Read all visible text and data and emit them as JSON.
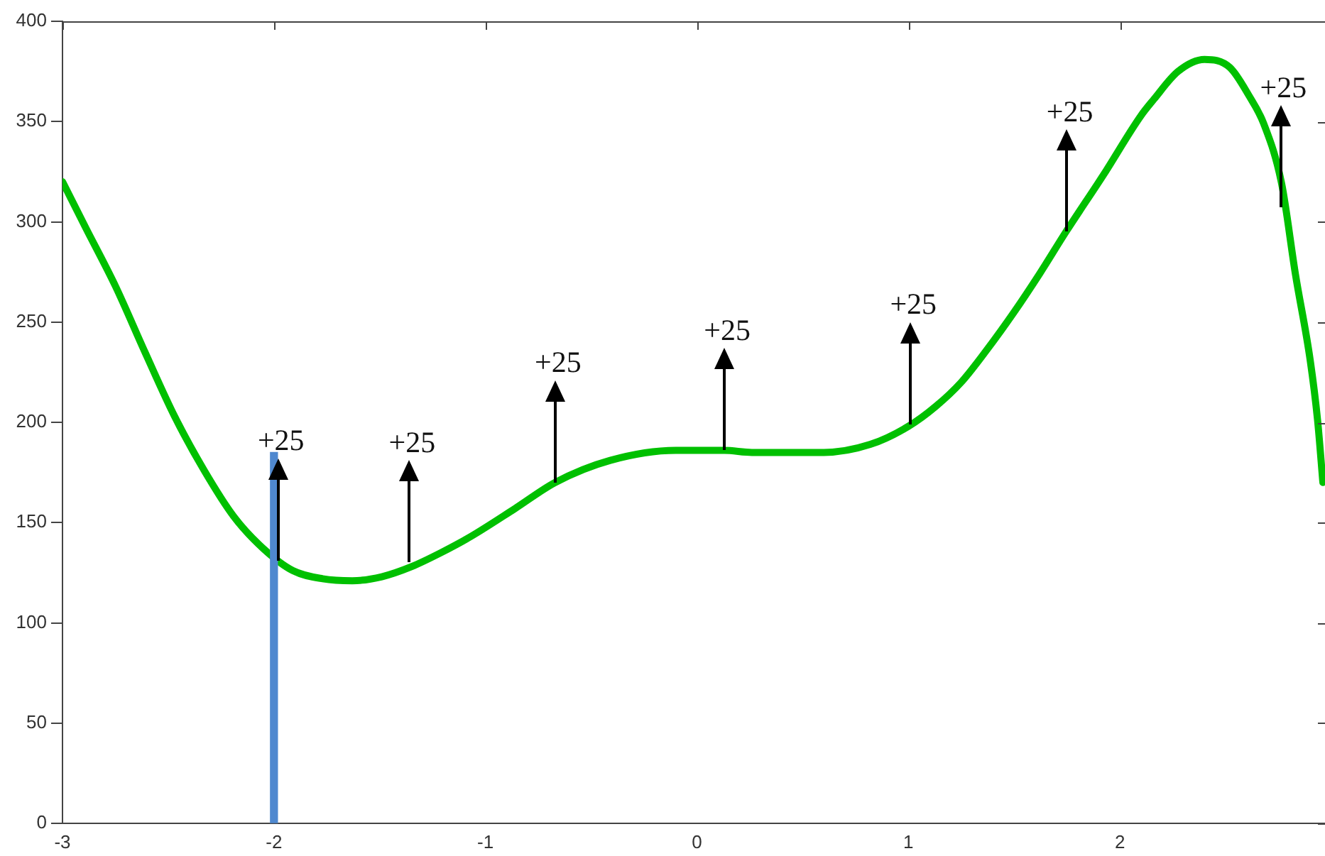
{
  "chart_data": {
    "type": "line",
    "xlim": [
      -3,
      2.97
    ],
    "ylim": [
      0,
      400
    ],
    "xticks": [
      -3,
      -2,
      -1,
      0,
      1,
      2
    ],
    "yticks": [
      0,
      50,
      100,
      150,
      200,
      250,
      300,
      350,
      400
    ],
    "grid": false,
    "legend": false,
    "marker": "none",
    "line_style": "solid",
    "series": [
      {
        "type": "bar",
        "color": "#4f88cf",
        "x": [
          -2
        ],
        "values": [
          185
        ]
      },
      {
        "color": "#00c000",
        "x": [
          -3.0,
          -2.89,
          -2.75,
          -2.61,
          -2.47,
          -2.33,
          -2.19,
          -2.05,
          -1.91,
          -1.77,
          -1.63,
          -1.49,
          -1.35,
          -1.21,
          -1.07,
          -0.86,
          -0.67,
          -0.41,
          -0.1,
          0.13,
          0.26,
          0.6,
          0.82,
          1.0,
          1.13,
          1.25,
          1.37,
          1.5,
          1.62,
          1.745,
          1.92,
          2.1,
          2.16,
          2.275,
          2.4,
          2.52,
          2.61,
          2.68,
          2.765,
          2.83,
          2.9,
          2.935,
          2.96
        ],
        "values": [
          320,
          297,
          268,
          235,
          203,
          176,
          153,
          137,
          126,
          122,
          121,
          123,
          128,
          135,
          143,
          157,
          170,
          181,
          186,
          186,
          185,
          185,
          189,
          198,
          208,
          220,
          236,
          255,
          274,
          295,
          323,
          353,
          361,
          375,
          381,
          377,
          363,
          349,
          319,
          274,
          231,
          201,
          170
        ]
      }
    ],
    "annotations": [
      {
        "text": "+25",
        "x": -1.98,
        "y": 131
      },
      {
        "text": "+25",
        "x": -1.36,
        "y": 130
      },
      {
        "text": "+25",
        "x": -0.67,
        "y": 170
      },
      {
        "text": "+25",
        "x": 0.13,
        "y": 186
      },
      {
        "text": "+25",
        "x": 1.01,
        "y": 199
      },
      {
        "text": "+25",
        "x": 1.75,
        "y": 295
      },
      {
        "text": "+25",
        "x": 2.76,
        "y": 307
      }
    ]
  }
}
